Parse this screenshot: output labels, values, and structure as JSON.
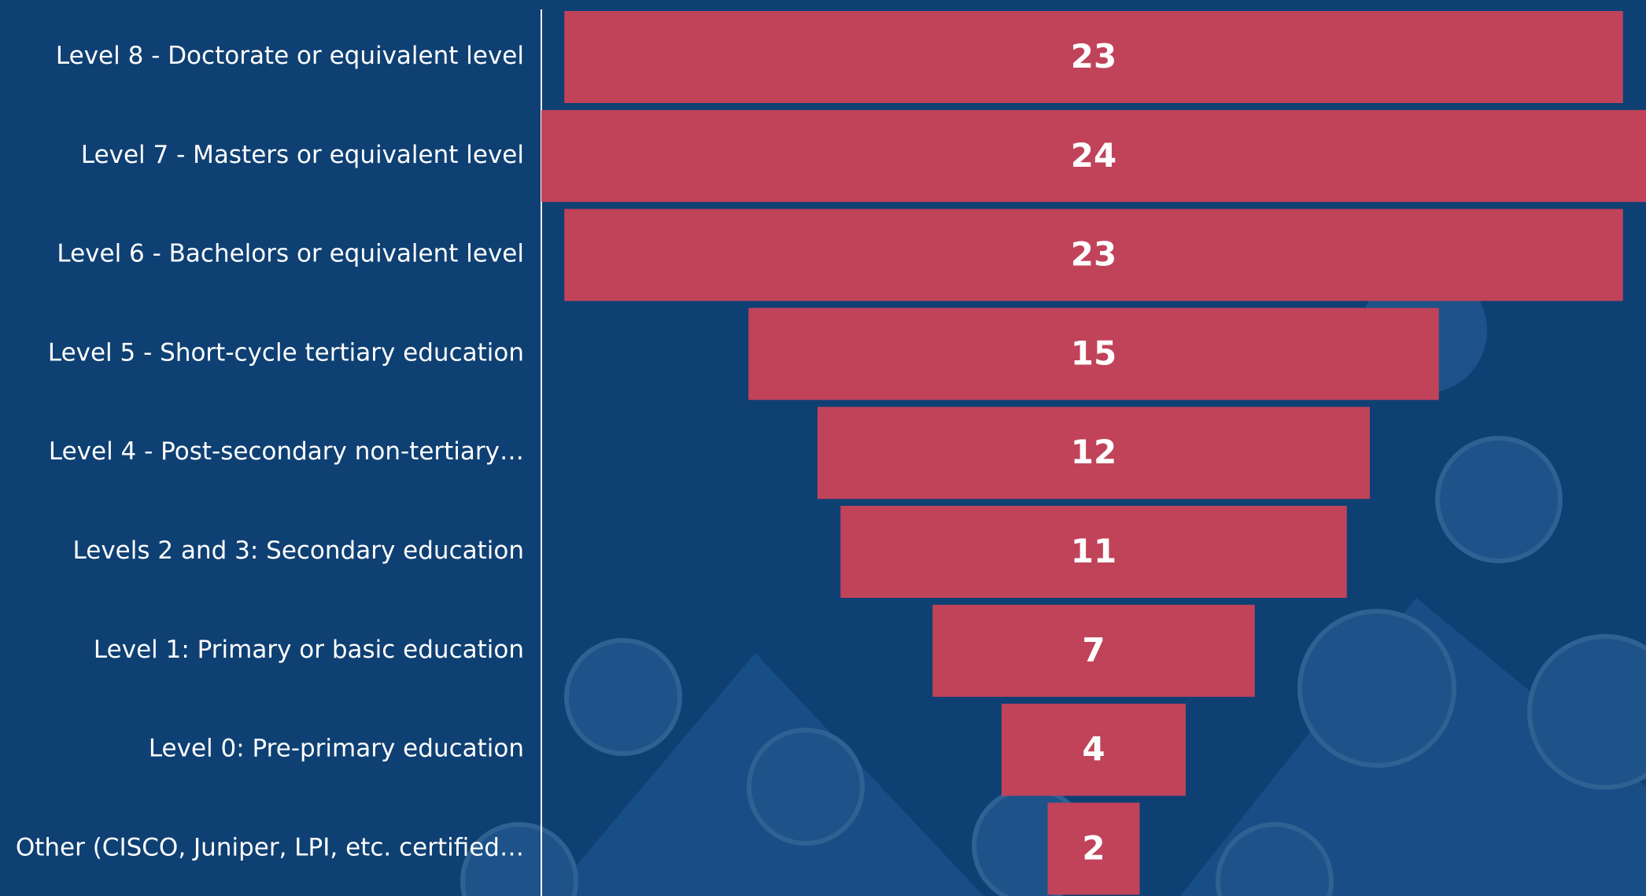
{
  "chart_data": {
    "type": "funnel",
    "categories": [
      "Level 8 - Doctorate or equivalent level",
      "Level 7 - Masters or equivalent level",
      "Level 6 - Bachelors or equivalent level",
      "Level 5 - Short-cycle tertiary education",
      "Level 4 - Post-secondary non-tertiary…",
      "Levels 2 and 3: Secondary education",
      "Level 1: Primary or basic education",
      "Level 0: Pre-primary education",
      "Other (CISCO, Juniper, LPI, etc. certified…"
    ],
    "values": [
      23,
      24,
      23,
      15,
      12,
      11,
      7,
      4,
      2
    ],
    "color": "#c0435a"
  }
}
